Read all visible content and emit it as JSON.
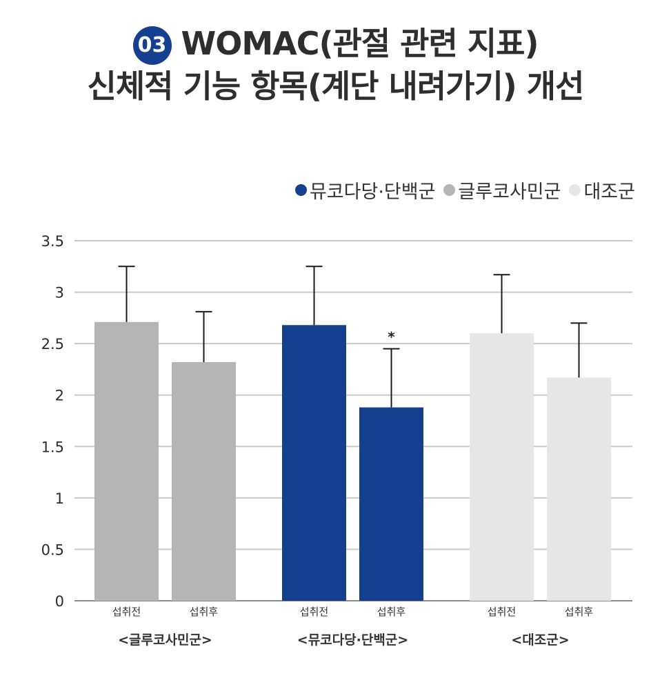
{
  "header": {
    "badge": "03",
    "title_line1": "WOMAC(관절 관련 지표)",
    "title_line2": "신체적 기능 항목(계단 내려가기) 개선"
  },
  "legend": [
    {
      "label": "뮤코다당·단백군",
      "color": "#153f8f"
    },
    {
      "label": "글루코사민군",
      "color": "#b5b5b5"
    },
    {
      "label": "대조군",
      "color": "#e6e6e6"
    }
  ],
  "chart_data": {
    "type": "bar",
    "ylim": [
      0,
      3.5
    ],
    "yticks": [
      "0",
      "0.5",
      "1",
      "1.5",
      "2",
      "2.5",
      "3",
      "3.5"
    ],
    "grid": true,
    "legend_position": "top-right",
    "groups": [
      {
        "label": "<글루코사민군>",
        "color": "#b5b5b5",
        "bars": [
          {
            "category": "섭취전",
            "value": 2.71,
            "error_top": 3.25
          },
          {
            "category": "섭취후",
            "value": 2.32,
            "error_top": 2.81
          }
        ]
      },
      {
        "label": "<뮤코다당·단백군>",
        "color": "#153f8f",
        "bars": [
          {
            "category": "섭취전",
            "value": 2.68,
            "error_top": 3.25
          },
          {
            "category": "섭취후",
            "value": 1.88,
            "error_top": 2.45,
            "annotation": "*"
          }
        ]
      },
      {
        "label": "<대조군>",
        "color": "#e6e6e6",
        "bars": [
          {
            "category": "섭취전",
            "value": 2.6,
            "error_top": 3.17
          },
          {
            "category": "섭취후",
            "value": 2.17,
            "error_top": 2.7
          }
        ]
      }
    ]
  }
}
